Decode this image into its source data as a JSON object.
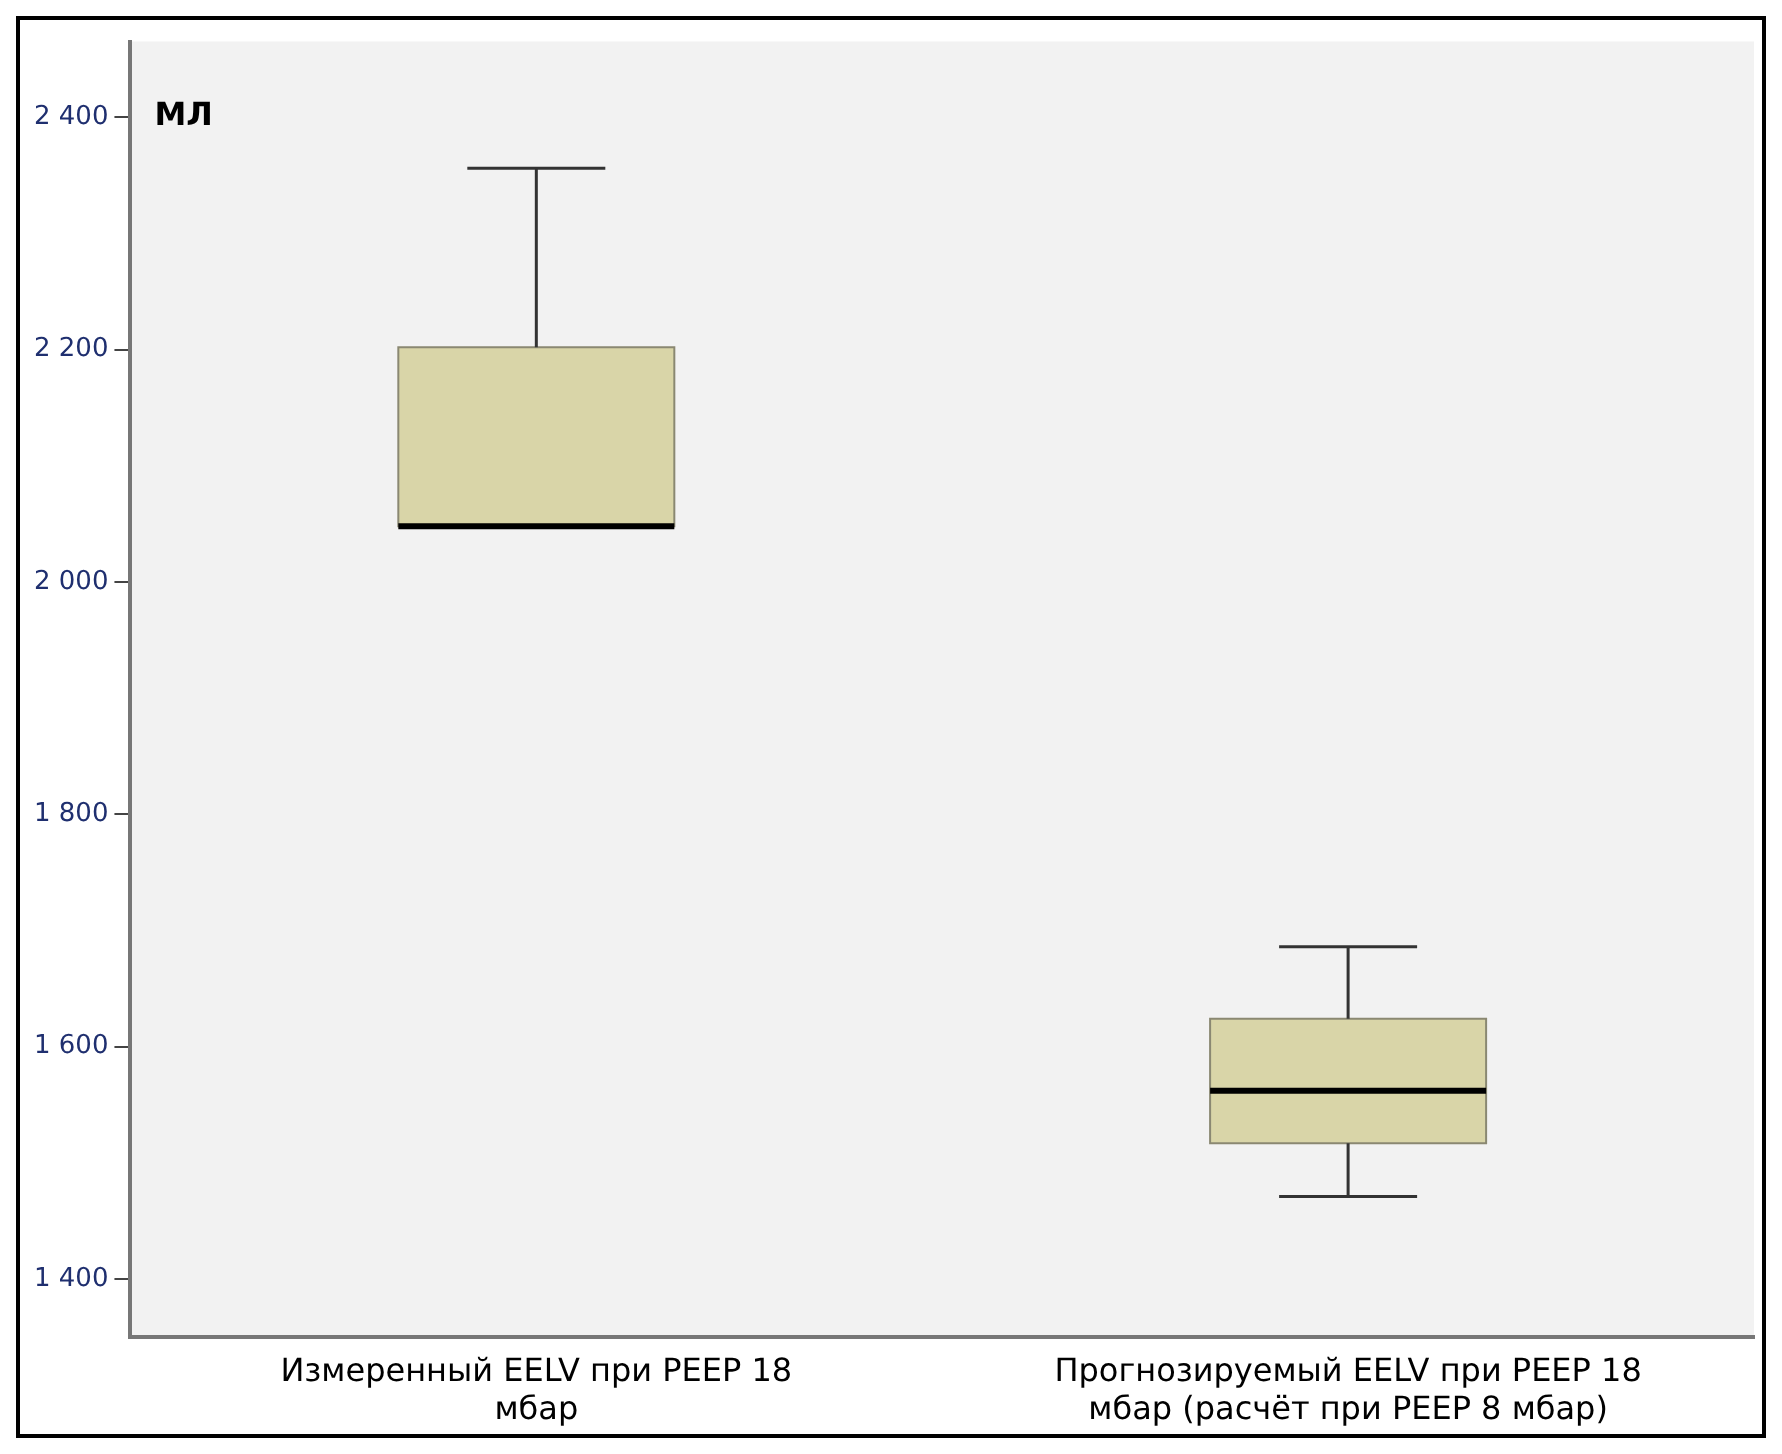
{
  "chart_data": {
    "type": "box",
    "ylabel": "МЛ",
    "categories": [
      "Измеренный EELV при PEEP 18 мбар",
      "Прогнозируемый EELV при PEEP 18 мбар (расчёт при PEEP 8 мбар)"
    ],
    "boxes": [
      {
        "low": 2047,
        "q1": 2048,
        "median": 2048,
        "q3": 2202,
        "high": 2356
      },
      {
        "low": 1471,
        "q1": 1517,
        "median": 1562,
        "q3": 1624,
        "high": 1686
      }
    ],
    "color": "#d9d5a8",
    "ylim": [
      1350,
      2465
    ],
    "yticks": [
      {
        "value": 1400,
        "label": "1 400"
      },
      {
        "value": 1600,
        "label": "1 600"
      },
      {
        "value": 1800,
        "label": "1 800"
      },
      {
        "value": 2000,
        "label": "2 000"
      },
      {
        "value": 2200,
        "label": "2 200"
      },
      {
        "value": 2400,
        "label": "2 400"
      }
    ],
    "grid": false,
    "legend": false
  }
}
